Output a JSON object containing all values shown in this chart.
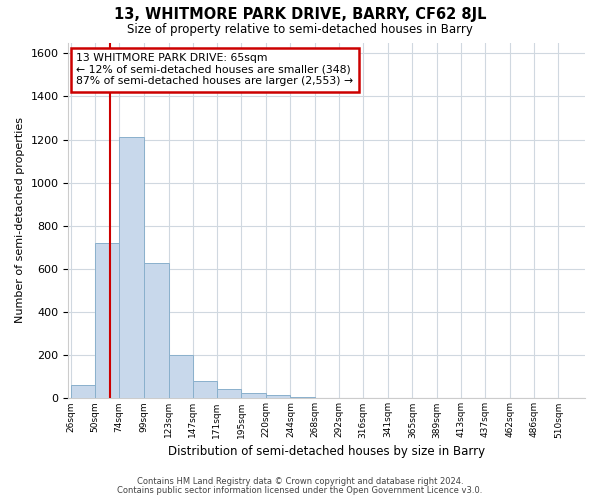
{
  "title": "13, WHITMORE PARK DRIVE, BARRY, CF62 8JL",
  "subtitle": "Size of property relative to semi-detached houses in Barry",
  "xlabel": "Distribution of semi-detached houses by size in Barry",
  "ylabel": "Number of semi-detached properties",
  "bar_labels": [
    "26sqm",
    "50sqm",
    "74sqm",
    "99sqm",
    "123sqm",
    "147sqm",
    "171sqm",
    "195sqm",
    "220sqm",
    "244sqm",
    "268sqm",
    "292sqm",
    "316sqm",
    "341sqm",
    "365sqm",
    "389sqm",
    "413sqm",
    "437sqm",
    "462sqm",
    "486sqm",
    "510sqm"
  ],
  "bar_values": [
    60,
    720,
    1210,
    630,
    200,
    80,
    45,
    25,
    15,
    5,
    0,
    0,
    0,
    0,
    0,
    0,
    0,
    0,
    0,
    0,
    0
  ],
  "bar_color": "#c8d8eb",
  "bar_edge_color": "#8ab0cc",
  "ylim": [
    0,
    1650
  ],
  "yticks": [
    0,
    200,
    400,
    600,
    800,
    1000,
    1200,
    1400,
    1600
  ],
  "vline_x": 65,
  "vline_color": "#cc0000",
  "annotation_title": "13 WHITMORE PARK DRIVE: 65sqm",
  "annotation_line1": "← 12% of semi-detached houses are smaller (348)",
  "annotation_line2": "87% of semi-detached houses are larger (2,553) →",
  "annotation_box_edge": "#cc0000",
  "footer1": "Contains HM Land Registry data © Crown copyright and database right 2024.",
  "footer2": "Contains public sector information licensed under the Open Government Licence v3.0.",
  "bin_edges": [
    26,
    50,
    74,
    99,
    123,
    147,
    171,
    195,
    220,
    244,
    268,
    292,
    316,
    341,
    365,
    389,
    413,
    437,
    462,
    486,
    510
  ],
  "background_color": "#ffffff",
  "plot_background": "#ffffff",
  "grid_color": "#d0d8e0"
}
